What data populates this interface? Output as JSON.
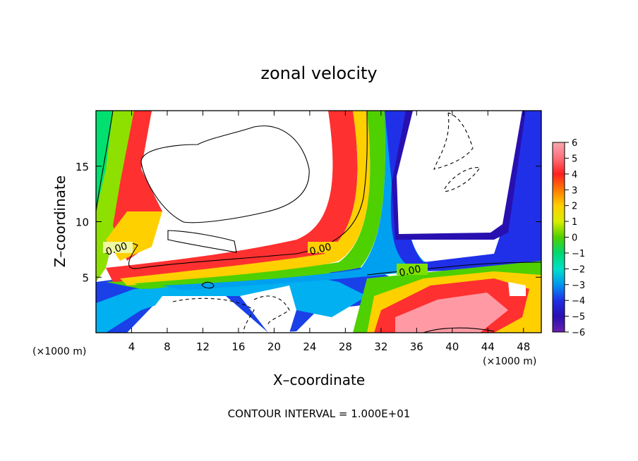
{
  "chart_data": {
    "type": "heatmap",
    "title": "zonal velocity",
    "xlabel": "X–coordinate",
    "ylabel": "Z–coordinate",
    "x_unit": "(×1000 m)",
    "x_ticks": [
      4,
      8,
      12,
      16,
      20,
      24,
      28,
      32,
      36,
      40,
      44,
      48
    ],
    "y_ticks": [
      5,
      10,
      15
    ],
    "xlim": [
      0,
      50
    ],
    "ylim": [
      0,
      20
    ],
    "colorbar": {
      "ticks": [
        6,
        5,
        4,
        3,
        2,
        1,
        0,
        -1,
        -2,
        -3,
        -4,
        -5,
        -6
      ],
      "colors": [
        "#f7a8b0",
        "#ff6f7a",
        "#ff1f1f",
        "#ff7a00",
        "#ffcf00",
        "#d8ee00",
        "#4fd000",
        "#00d870",
        "#00e0c8",
        "#0096f0",
        "#1f30e8",
        "#2810b0",
        "#6a1fb0"
      ],
      "range": [
        -6,
        6
      ]
    },
    "contour_labels": [
      "0.00",
      "0.00",
      "0.00"
    ],
    "footer": "CONTOUR INTERVAL = 1.000E+01",
    "grid": false
  }
}
